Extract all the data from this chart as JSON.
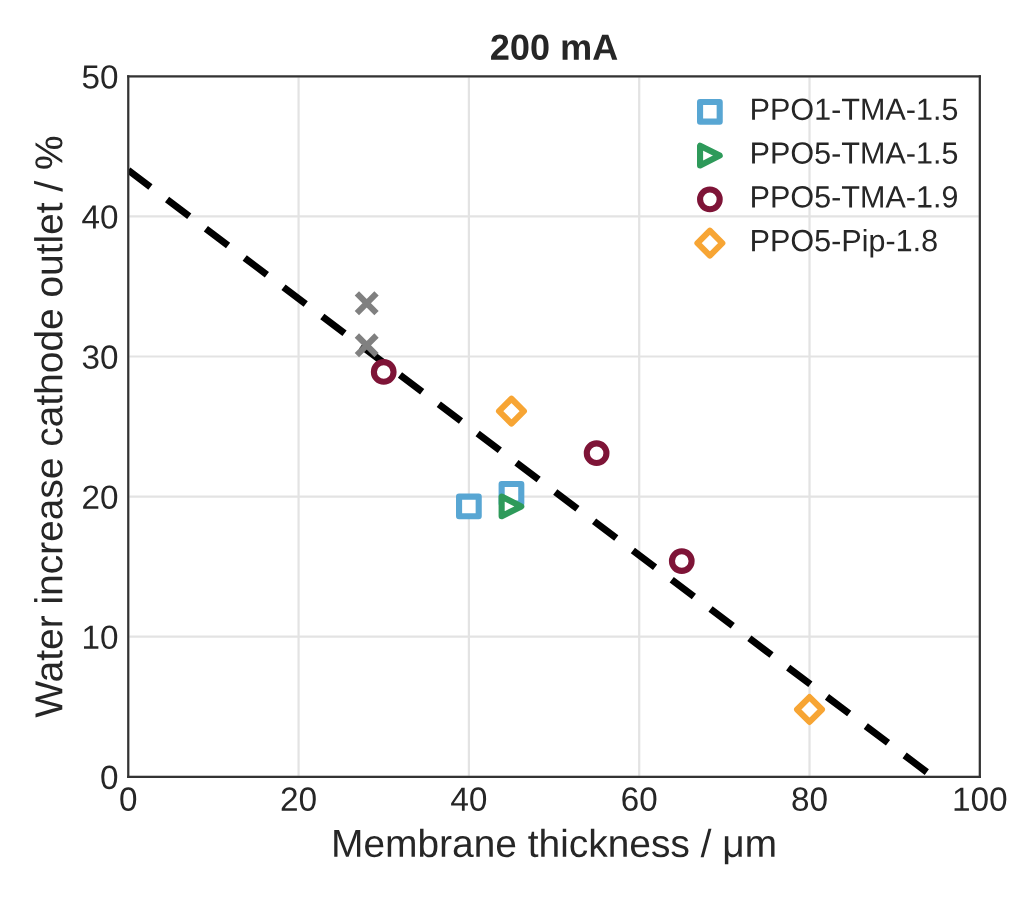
{
  "chart_data": {
    "type": "scatter",
    "title": "200 mA",
    "xlabel": "Membrane thickness / μm",
    "ylabel": "Water increase cathode outlet / %",
    "xlim": [
      0,
      100
    ],
    "xticks": [
      0,
      20,
      40,
      60,
      80,
      100
    ],
    "ylim": [
      0,
      50
    ],
    "yticks": [
      0,
      10,
      20,
      30,
      40,
      50
    ],
    "grid": true,
    "legend": "top right",
    "series": [
      {
        "color": "#808080",
        "marker": "cross",
        "x": [
          28,
          28
        ],
        "values": [
          33.8,
          30.8
        ]
      },
      {
        "name": "PPO1-TMA-1.5",
        "color": "#58a6d3",
        "marker": "square",
        "x": [
          40,
          45
        ],
        "values": [
          19.3,
          20.2
        ]
      },
      {
        "name": "PPO5-TMA-1.5",
        "color": "#2e9a5a",
        "marker": "triangle",
        "x": [
          45
        ],
        "values": [
          19.3
        ]
      },
      {
        "name": "PPO5-TMA-1.9",
        "color": "#7e1437",
        "marker": "circle",
        "x": [
          30,
          55,
          65
        ],
        "values": [
          28.9,
          23.1,
          15.4
        ]
      },
      {
        "name": "PPO5-Pip-1.8",
        "color": "#f7a534",
        "marker": "diamond",
        "x": [
          45,
          80
        ],
        "values": [
          26.1,
          4.8
        ]
      },
      {
        "type": "line",
        "color": "#000000",
        "line_style": "dashed",
        "x": [
          0,
          94.5
        ],
        "values": [
          43.3,
          0
        ]
      }
    ]
  }
}
